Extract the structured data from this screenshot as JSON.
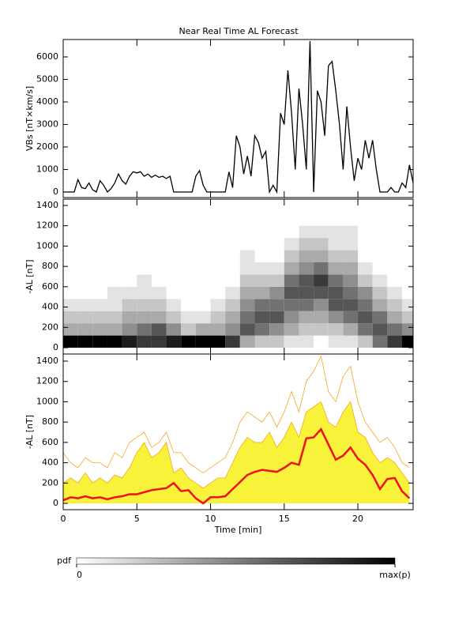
{
  "chart_data": [
    {
      "type": "line",
      "title": "Near Real Time AL Forecast",
      "ylabel": "VBs [nT×km/s]",
      "xlim": [
        0,
        23.75
      ],
      "ylim": [
        -246,
        6772
      ],
      "xticks": [
        0,
        5,
        10,
        15,
        20
      ],
      "yticks": [
        0,
        1000,
        2000,
        3000,
        4000,
        5000,
        6000
      ],
      "x": [
        0,
        0.25,
        0.5,
        0.75,
        1,
        1.25,
        1.5,
        1.75,
        2,
        2.25,
        2.5,
        2.75,
        3,
        3.25,
        3.5,
        3.75,
        4,
        4.25,
        4.5,
        4.75,
        5,
        5.25,
        5.5,
        5.75,
        6,
        6.25,
        6.5,
        6.75,
        7,
        7.25,
        7.5,
        7.75,
        8,
        8.25,
        8.5,
        8.75,
        9,
        9.25,
        9.5,
        9.75,
        10,
        10.25,
        10.5,
        10.75,
        11,
        11.25,
        11.5,
        11.75,
        12,
        12.25,
        12.5,
        12.75,
        13,
        13.25,
        13.5,
        13.75,
        14,
        14.25,
        14.5,
        14.75,
        15,
        15.25,
        15.5,
        15.75,
        16,
        16.25,
        16.5,
        16.75,
        17,
        17.25,
        17.5,
        17.75,
        18,
        18.25,
        18.5,
        18.75,
        19,
        19.25,
        19.5,
        19.75,
        20,
        20.25,
        20.5,
        20.75,
        21,
        21.25,
        21.5,
        21.75,
        22,
        22.25,
        22.5,
        22.75,
        23,
        23.25,
        23.5,
        23.75
      ],
      "series": [
        {
          "color": "#000000",
          "values": [
            0,
            0,
            0,
            0,
            550,
            200,
            150,
            400,
            100,
            0,
            500,
            300,
            0,
            150,
            400,
            800,
            500,
            350,
            700,
            900,
            850,
            900,
            700,
            800,
            650,
            750,
            650,
            700,
            600,
            700,
            0,
            0,
            0,
            0,
            0,
            0,
            700,
            950,
            300,
            0,
            0,
            0,
            0,
            0,
            0,
            900,
            200,
            2500,
            2000,
            800,
            1600,
            700,
            2500,
            2200,
            1500,
            1800,
            0,
            300,
            0,
            3500,
            3000,
            5400,
            3500,
            1000,
            4600,
            3000,
            1000,
            6700,
            0,
            4500,
            4000,
            2500,
            5600,
            5800,
            4500,
            3000,
            1000,
            3800,
            2000,
            500,
            1500,
            1000,
            2300,
            1500,
            2300,
            1000,
            0,
            0,
            0,
            200,
            0,
            0,
            400,
            200,
            1200,
            400
          ]
        }
      ]
    },
    {
      "type": "heatmap",
      "ylabel": "-AL [nT]",
      "xlim": [
        0,
        23.75
      ],
      "ylim": [
        -62,
        1462
      ],
      "xticks": [
        0,
        5,
        10,
        15,
        20
      ],
      "yticks": [
        0,
        200,
        400,
        600,
        800,
        1000,
        1200,
        1400
      ],
      "x_bins": [
        0,
        1,
        2,
        3,
        4,
        5,
        6,
        7,
        8,
        9,
        10,
        11,
        12,
        13,
        14,
        15,
        16,
        17,
        18,
        19,
        20,
        21,
        22,
        23,
        24
      ],
      "y_bins": [
        0,
        120,
        240,
        360,
        480,
        600,
        720,
        840,
        960,
        1080,
        1200
      ],
      "zlim": [
        0,
        9
      ],
      "z": [
        [
          9,
          3,
          2,
          1,
          0,
          0,
          0,
          0,
          0,
          0
        ],
        [
          9,
          3,
          2,
          1,
          0,
          0,
          0,
          0,
          0,
          0
        ],
        [
          9,
          3,
          2,
          1,
          0,
          0,
          0,
          0,
          0,
          0
        ],
        [
          9,
          3,
          2,
          1,
          1,
          0,
          0,
          0,
          0,
          0
        ],
        [
          8,
          4,
          3,
          2,
          1,
          0,
          0,
          0,
          0,
          0
        ],
        [
          7,
          5,
          3,
          2,
          1,
          1,
          0,
          0,
          0,
          0
        ],
        [
          7,
          6,
          3,
          2,
          1,
          0,
          0,
          0,
          0,
          0
        ],
        [
          8,
          4,
          2,
          1,
          0,
          0,
          0,
          0,
          0,
          0
        ],
        [
          9,
          2,
          1,
          0,
          0,
          0,
          0,
          0,
          0,
          0
        ],
        [
          9,
          3,
          1,
          0,
          0,
          0,
          0,
          0,
          0,
          0
        ],
        [
          9,
          3,
          2,
          1,
          0,
          0,
          0,
          0,
          0,
          0
        ],
        [
          7,
          4,
          3,
          2,
          1,
          0,
          0,
          0,
          0,
          0
        ],
        [
          3,
          6,
          5,
          4,
          3,
          2,
          1,
          1,
          0,
          0
        ],
        [
          2,
          5,
          6,
          5,
          3,
          2,
          1,
          0,
          0,
          0
        ],
        [
          2,
          4,
          6,
          5,
          4,
          2,
          1,
          0,
          0,
          0
        ],
        [
          1,
          3,
          4,
          5,
          6,
          5,
          3,
          2,
          1,
          0
        ],
        [
          1,
          2,
          3,
          5,
          6,
          6,
          4,
          3,
          2,
          1
        ],
        [
          0,
          2,
          3,
          4,
          6,
          7,
          5,
          3,
          2,
          1
        ],
        [
          1,
          2,
          4,
          6,
          6,
          5,
          3,
          2,
          1,
          1
        ],
        [
          1,
          3,
          5,
          6,
          5,
          4,
          3,
          2,
          1,
          1
        ],
        [
          2,
          5,
          6,
          5,
          4,
          2,
          1,
          0,
          0,
          0
        ],
        [
          5,
          6,
          5,
          3,
          2,
          1,
          0,
          0,
          0,
          0
        ],
        [
          7,
          5,
          3,
          2,
          1,
          0,
          0,
          0,
          0,
          0
        ],
        [
          9,
          4,
          2,
          1,
          0,
          0,
          0,
          0,
          0,
          0
        ]
      ],
      "colorbar": {
        "label": "pdf",
        "ticks": [
          0,
          {
            "value": 9,
            "label": "max(p)"
          }
        ]
      }
    },
    {
      "type": "line",
      "ylabel": "-AL [nT]",
      "xlabel": "Time [min]",
      "xlim": [
        0,
        23.75
      ],
      "ylim": [
        -62,
        1470
      ],
      "xticks": [
        0,
        5,
        10,
        15,
        20
      ],
      "yticks": [
        0,
        200,
        400,
        600,
        800,
        1000,
        1200,
        1400
      ],
      "x": [
        0,
        0.5,
        1,
        1.5,
        2,
        2.5,
        3,
        3.5,
        4,
        4.5,
        5,
        5.5,
        6,
        6.5,
        7,
        7.5,
        8,
        8.5,
        9,
        9.5,
        10,
        10.5,
        11,
        11.5,
        12,
        12.5,
        13,
        13.5,
        14,
        14.5,
        15,
        15.5,
        16,
        16.5,
        17,
        17.5,
        18,
        18.5,
        19,
        19.5,
        20,
        20.5,
        21,
        21.5,
        22,
        22.5,
        23,
        23.5
      ],
      "series": [
        {
          "color": "#f5a623",
          "fill": "#f8f23a",
          "values": [
            200,
            250,
            200,
            300,
            200,
            250,
            200,
            280,
            250,
            350,
            500,
            600,
            450,
            500,
            600,
            300,
            350,
            250,
            200,
            150,
            200,
            250,
            250,
            400,
            550,
            650,
            600,
            600,
            700,
            550,
            650,
            800,
            650,
            900,
            950,
            1000,
            800,
            750,
            900,
            1000,
            700,
            650,
            500,
            400,
            450,
            400,
            300,
            200
          ]
        },
        {
          "color": "#f5a623",
          "values": [
            500,
            400,
            350,
            450,
            400,
            400,
            350,
            500,
            450,
            600,
            650,
            700,
            550,
            600,
            700,
            500,
            500,
            400,
            350,
            300,
            350,
            400,
            450,
            600,
            800,
            900,
            850,
            800,
            900,
            750,
            900,
            1100,
            900,
            1200,
            1300,
            1450,
            1100,
            1000,
            1250,
            1350,
            1000,
            800,
            700,
            600,
            650,
            550,
            400,
            350
          ]
        },
        {
          "color": "#ee1111",
          "values": [
            30,
            60,
            50,
            70,
            50,
            60,
            40,
            60,
            70,
            90,
            90,
            110,
            130,
            140,
            150,
            200,
            120,
            130,
            50,
            0,
            60,
            60,
            70,
            140,
            210,
            280,
            310,
            330,
            320,
            310,
            350,
            400,
            380,
            640,
            650,
            730,
            580,
            430,
            470,
            550,
            440,
            380,
            280,
            140,
            240,
            250,
            120,
            50
          ]
        }
      ]
    }
  ]
}
